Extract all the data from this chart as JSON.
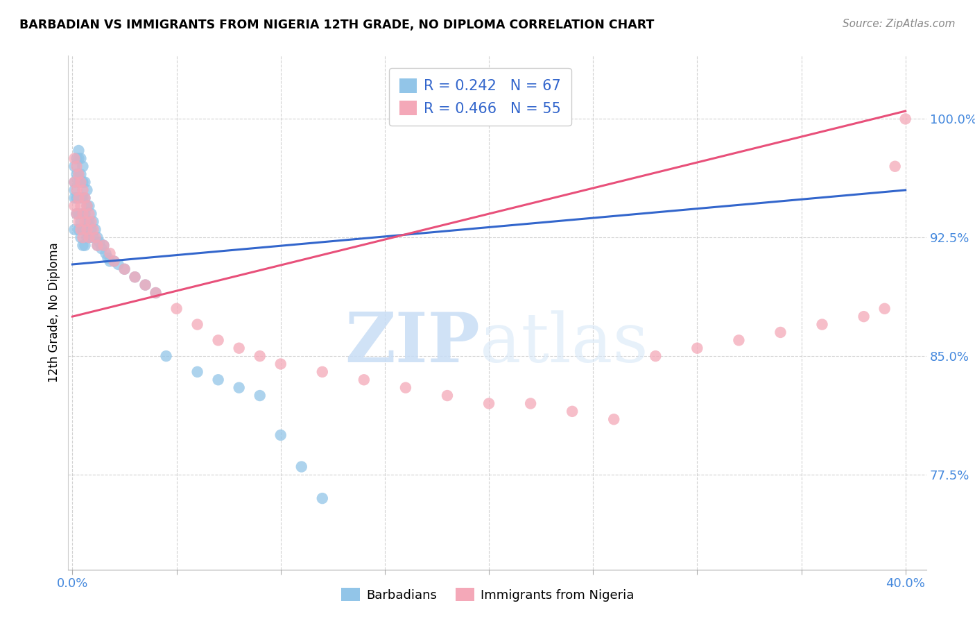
{
  "title": "BARBADIAN VS IMMIGRANTS FROM NIGERIA 12TH GRADE, NO DIPLOMA CORRELATION CHART",
  "source": "Source: ZipAtlas.com",
  "ylabel": "12th Grade, No Diploma",
  "ytick_labels": [
    "100.0%",
    "92.5%",
    "85.0%",
    "77.5%"
  ],
  "ytick_values": [
    1.0,
    0.925,
    0.85,
    0.775
  ],
  "xlim": [
    -0.002,
    0.41
  ],
  "ylim": [
    0.715,
    1.04
  ],
  "legend_blue_r": "0.242",
  "legend_blue_n": "67",
  "legend_pink_r": "0.466",
  "legend_pink_n": "55",
  "blue_color": "#92c5e8",
  "pink_color": "#f4a8b8",
  "blue_line_color": "#3366cc",
  "pink_line_color": "#e8507a",
  "watermark_zip": "ZIP",
  "watermark_atlas": "atlas",
  "blue_line_x": [
    0.0,
    0.4
  ],
  "blue_line_y": [
    0.908,
    0.955
  ],
  "pink_line_x": [
    0.0,
    0.4
  ],
  "pink_line_y": [
    0.875,
    1.005
  ],
  "blue_x": [
    0.001,
    0.001,
    0.001,
    0.001,
    0.001,
    0.002,
    0.002,
    0.002,
    0.002,
    0.003,
    0.003,
    0.003,
    0.003,
    0.003,
    0.003,
    0.003,
    0.004,
    0.004,
    0.004,
    0.004,
    0.004,
    0.004,
    0.005,
    0.005,
    0.005,
    0.005,
    0.005,
    0.005,
    0.006,
    0.006,
    0.006,
    0.006,
    0.006,
    0.007,
    0.007,
    0.007,
    0.007,
    0.008,
    0.008,
    0.008,
    0.009,
    0.009,
    0.01,
    0.01,
    0.011,
    0.012,
    0.012,
    0.013,
    0.014,
    0.015,
    0.016,
    0.017,
    0.018,
    0.02,
    0.022,
    0.025,
    0.03,
    0.035,
    0.04,
    0.045,
    0.06,
    0.07,
    0.08,
    0.09,
    0.1,
    0.11,
    0.12
  ],
  "blue_y": [
    0.97,
    0.96,
    0.955,
    0.95,
    0.93,
    0.975,
    0.965,
    0.95,
    0.94,
    0.98,
    0.975,
    0.965,
    0.96,
    0.95,
    0.94,
    0.93,
    0.975,
    0.965,
    0.96,
    0.95,
    0.935,
    0.925,
    0.97,
    0.96,
    0.95,
    0.94,
    0.93,
    0.92,
    0.96,
    0.95,
    0.94,
    0.93,
    0.92,
    0.955,
    0.945,
    0.935,
    0.925,
    0.945,
    0.935,
    0.925,
    0.94,
    0.93,
    0.935,
    0.925,
    0.93,
    0.925,
    0.92,
    0.922,
    0.918,
    0.92,
    0.915,
    0.912,
    0.91,
    0.91,
    0.908,
    0.905,
    0.9,
    0.895,
    0.89,
    0.85,
    0.84,
    0.835,
    0.83,
    0.825,
    0.8,
    0.78,
    0.76
  ],
  "pink_x": [
    0.001,
    0.001,
    0.001,
    0.002,
    0.002,
    0.002,
    0.003,
    0.003,
    0.003,
    0.004,
    0.004,
    0.004,
    0.005,
    0.005,
    0.005,
    0.006,
    0.006,
    0.007,
    0.007,
    0.008,
    0.008,
    0.009,
    0.01,
    0.011,
    0.012,
    0.015,
    0.018,
    0.02,
    0.025,
    0.03,
    0.035,
    0.04,
    0.05,
    0.06,
    0.07,
    0.08,
    0.09,
    0.1,
    0.12,
    0.14,
    0.16,
    0.18,
    0.2,
    0.22,
    0.24,
    0.26,
    0.28,
    0.3,
    0.32,
    0.34,
    0.36,
    0.38,
    0.39,
    0.395,
    0.4
  ],
  "pink_y": [
    0.975,
    0.96,
    0.945,
    0.97,
    0.955,
    0.94,
    0.965,
    0.95,
    0.935,
    0.96,
    0.945,
    0.93,
    0.955,
    0.94,
    0.925,
    0.95,
    0.935,
    0.945,
    0.93,
    0.94,
    0.925,
    0.935,
    0.93,
    0.925,
    0.92,
    0.92,
    0.915,
    0.91,
    0.905,
    0.9,
    0.895,
    0.89,
    0.88,
    0.87,
    0.86,
    0.855,
    0.85,
    0.845,
    0.84,
    0.835,
    0.83,
    0.825,
    0.82,
    0.82,
    0.815,
    0.81,
    0.85,
    0.855,
    0.86,
    0.865,
    0.87,
    0.875,
    0.88,
    0.97,
    1.0
  ]
}
